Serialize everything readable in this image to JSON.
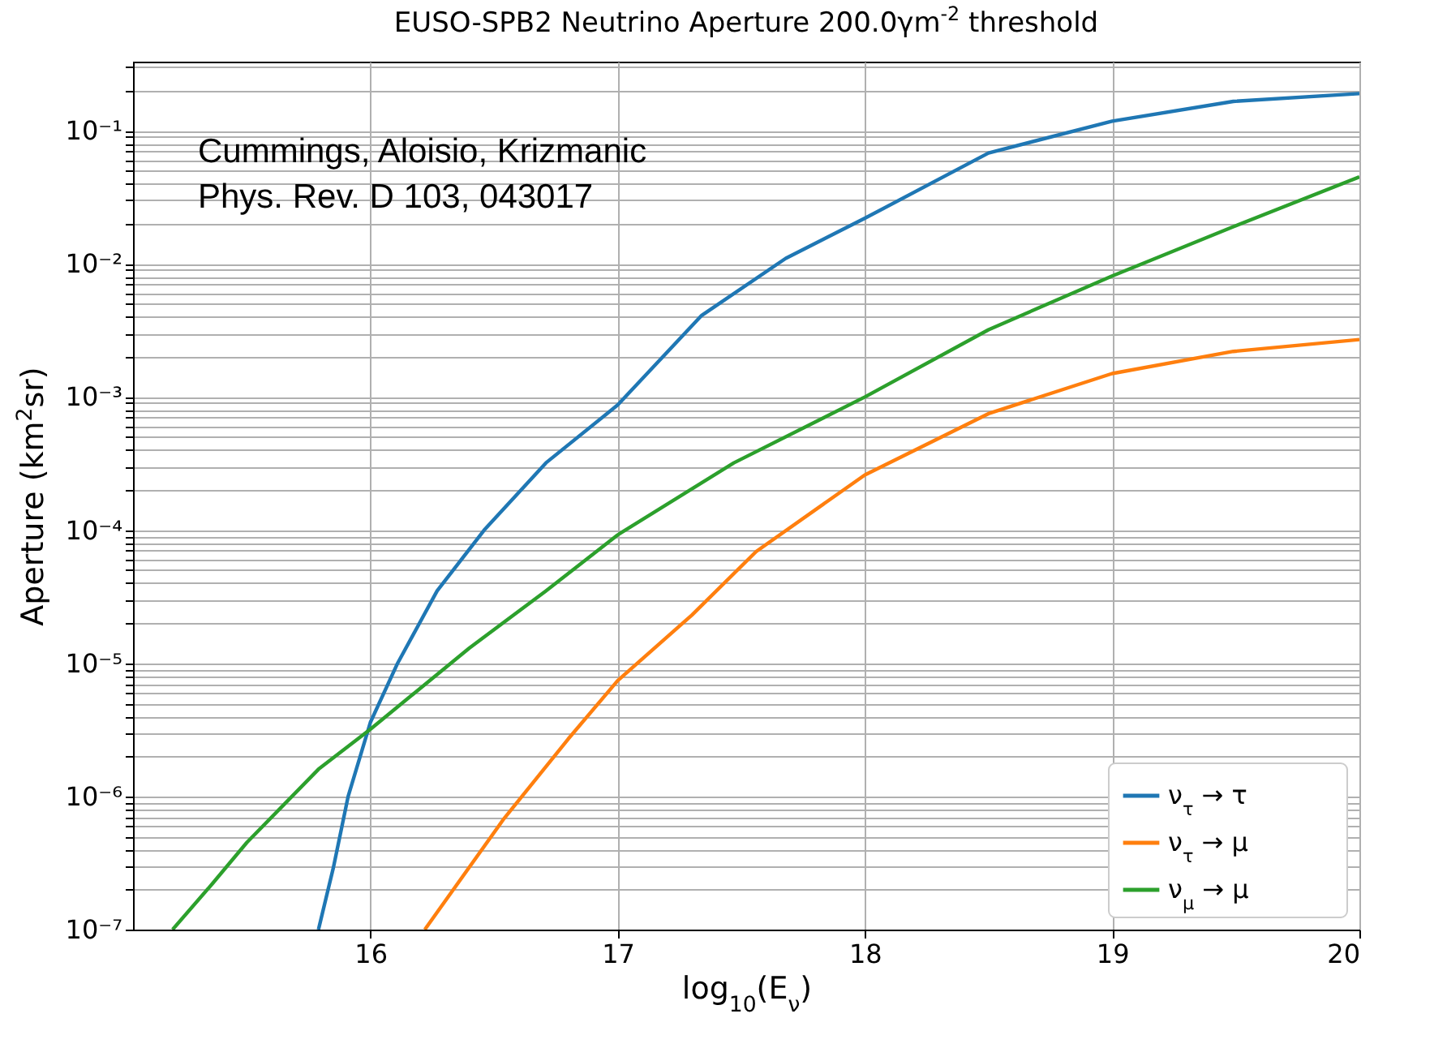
{
  "chart_data": {
    "type": "line",
    "title": "EUSO-SPB2 Neutrino Aperture 200.0γm$^{-2}$ threshold",
    "xlabel": "log$_{10}$(E$_{ν}$)",
    "ylabel": "Aperture (km$^{2}$sr)",
    "log": "y",
    "grid": true,
    "legend": "bottom right",
    "line_style": "solid",
    "marker": "none",
    "xlim": [
      15.04,
      20
    ],
    "xticks": [
      16,
      17,
      18,
      19,
      20
    ],
    "ylim": [
      1e-07,
      0.33
    ],
    "yticks": [
      {
        "value": 1e-07,
        "label": "10⁻⁷"
      },
      {
        "value": 2e-07,
        "label": null
      },
      {
        "value": 3e-07,
        "label": null
      },
      {
        "value": 4e-07,
        "label": null
      },
      {
        "value": 5e-07,
        "label": null
      },
      {
        "value": 6e-07,
        "label": null
      },
      {
        "value": 7e-07,
        "label": null
      },
      {
        "value": 8e-07,
        "label": null
      },
      {
        "value": 9e-07,
        "label": null
      },
      {
        "value": 1e-06,
        "label": "10⁻⁶"
      },
      {
        "value": 2e-06,
        "label": null
      },
      {
        "value": 3e-06,
        "label": null
      },
      {
        "value": 4e-06,
        "label": null
      },
      {
        "value": 5e-06,
        "label": null
      },
      {
        "value": 6e-06,
        "label": null
      },
      {
        "value": 7e-06,
        "label": null
      },
      {
        "value": 8e-06,
        "label": null
      },
      {
        "value": 9e-06,
        "label": null
      },
      {
        "value": 1e-05,
        "label": "10⁻⁵"
      },
      {
        "value": 2e-05,
        "label": null
      },
      {
        "value": 3e-05,
        "label": null
      },
      {
        "value": 4e-05,
        "label": null
      },
      {
        "value": 5e-05,
        "label": null
      },
      {
        "value": 6e-05,
        "label": null
      },
      {
        "value": 7e-05,
        "label": null
      },
      {
        "value": 8e-05,
        "label": null
      },
      {
        "value": 9e-05,
        "label": null
      },
      {
        "value": 0.0001,
        "label": "10⁻⁴"
      },
      {
        "value": 0.0002,
        "label": null
      },
      {
        "value": 0.0003,
        "label": null
      },
      {
        "value": 0.0004,
        "label": null
      },
      {
        "value": 0.0005,
        "label": null
      },
      {
        "value": 0.0006,
        "label": null
      },
      {
        "value": 0.0007,
        "label": null
      },
      {
        "value": 0.0008,
        "label": null
      },
      {
        "value": 0.0009,
        "label": null
      },
      {
        "value": 0.001,
        "label": "10⁻³"
      },
      {
        "value": 0.002,
        "label": null
      },
      {
        "value": 0.003,
        "label": null
      },
      {
        "value": 0.004,
        "label": null
      },
      {
        "value": 0.005,
        "label": null
      },
      {
        "value": 0.006,
        "label": null
      },
      {
        "value": 0.007,
        "label": null
      },
      {
        "value": 0.008,
        "label": null
      },
      {
        "value": 0.009,
        "label": null
      },
      {
        "value": 0.01,
        "label": "10⁻²"
      },
      {
        "value": 0.02,
        "label": null
      },
      {
        "value": 0.03,
        "label": null
      },
      {
        "value": 0.04,
        "label": null
      },
      {
        "value": 0.05,
        "label": null
      },
      {
        "value": 0.06,
        "label": null
      },
      {
        "value": 0.07,
        "label": null
      },
      {
        "value": 0.08,
        "label": null
      },
      {
        "value": 0.09,
        "label": null
      },
      {
        "value": 0.1,
        "label": "10⁻¹"
      },
      {
        "value": 0.2,
        "label": null
      },
      {
        "value": 0.3,
        "label": null
      }
    ],
    "annotations": [
      "Cummings, Aloisio, Krizmanic",
      "Phys. Rev. D 103, 043017"
    ],
    "series": [
      {
        "name": "ν$_{τ}$ → τ",
        "color": "#1f77b4",
        "x": [
          15.79,
          15.85,
          15.91,
          16.0,
          16.11,
          16.27,
          16.46,
          16.71,
          17.0,
          17.34,
          17.68,
          18.0,
          18.5,
          19.0,
          19.49,
          20.0
        ],
        "values": [
          1e-07,
          2.9e-07,
          1e-06,
          3.6e-06,
          1e-05,
          3.5e-05,
          0.0001,
          0.00032,
          0.00087,
          0.0041,
          0.011,
          0.022,
          0.068,
          0.118,
          0.166,
          0.19
        ]
      },
      {
        "name": "ν$_{τ}$ → μ",
        "color": "#ff7f0e",
        "x": [
          16.22,
          16.54,
          16.8,
          17.0,
          17.3,
          17.56,
          18.0,
          18.5,
          19.0,
          19.49,
          20.0
        ],
        "values": [
          1e-07,
          6.8e-07,
          2.7e-06,
          7.4e-06,
          2.3e-05,
          6.9e-05,
          0.00026,
          0.00075,
          0.0015,
          0.0022,
          0.0027
        ]
      },
      {
        "name": "ν$_{μ}$ → μ",
        "color": "#2ca02c",
        "x": [
          15.2,
          15.36,
          15.5,
          15.79,
          16.0,
          16.4,
          16.71,
          17.0,
          17.47,
          18.0,
          18.5,
          19.0,
          19.49,
          20.0
        ],
        "values": [
          1e-07,
          2.2e-07,
          4.5e-07,
          1.6e-06,
          3.2e-06,
          1.3e-05,
          3.5e-05,
          9.2e-05,
          0.00032,
          0.001,
          0.0032,
          0.0081,
          0.019,
          0.045
        ]
      }
    ]
  }
}
